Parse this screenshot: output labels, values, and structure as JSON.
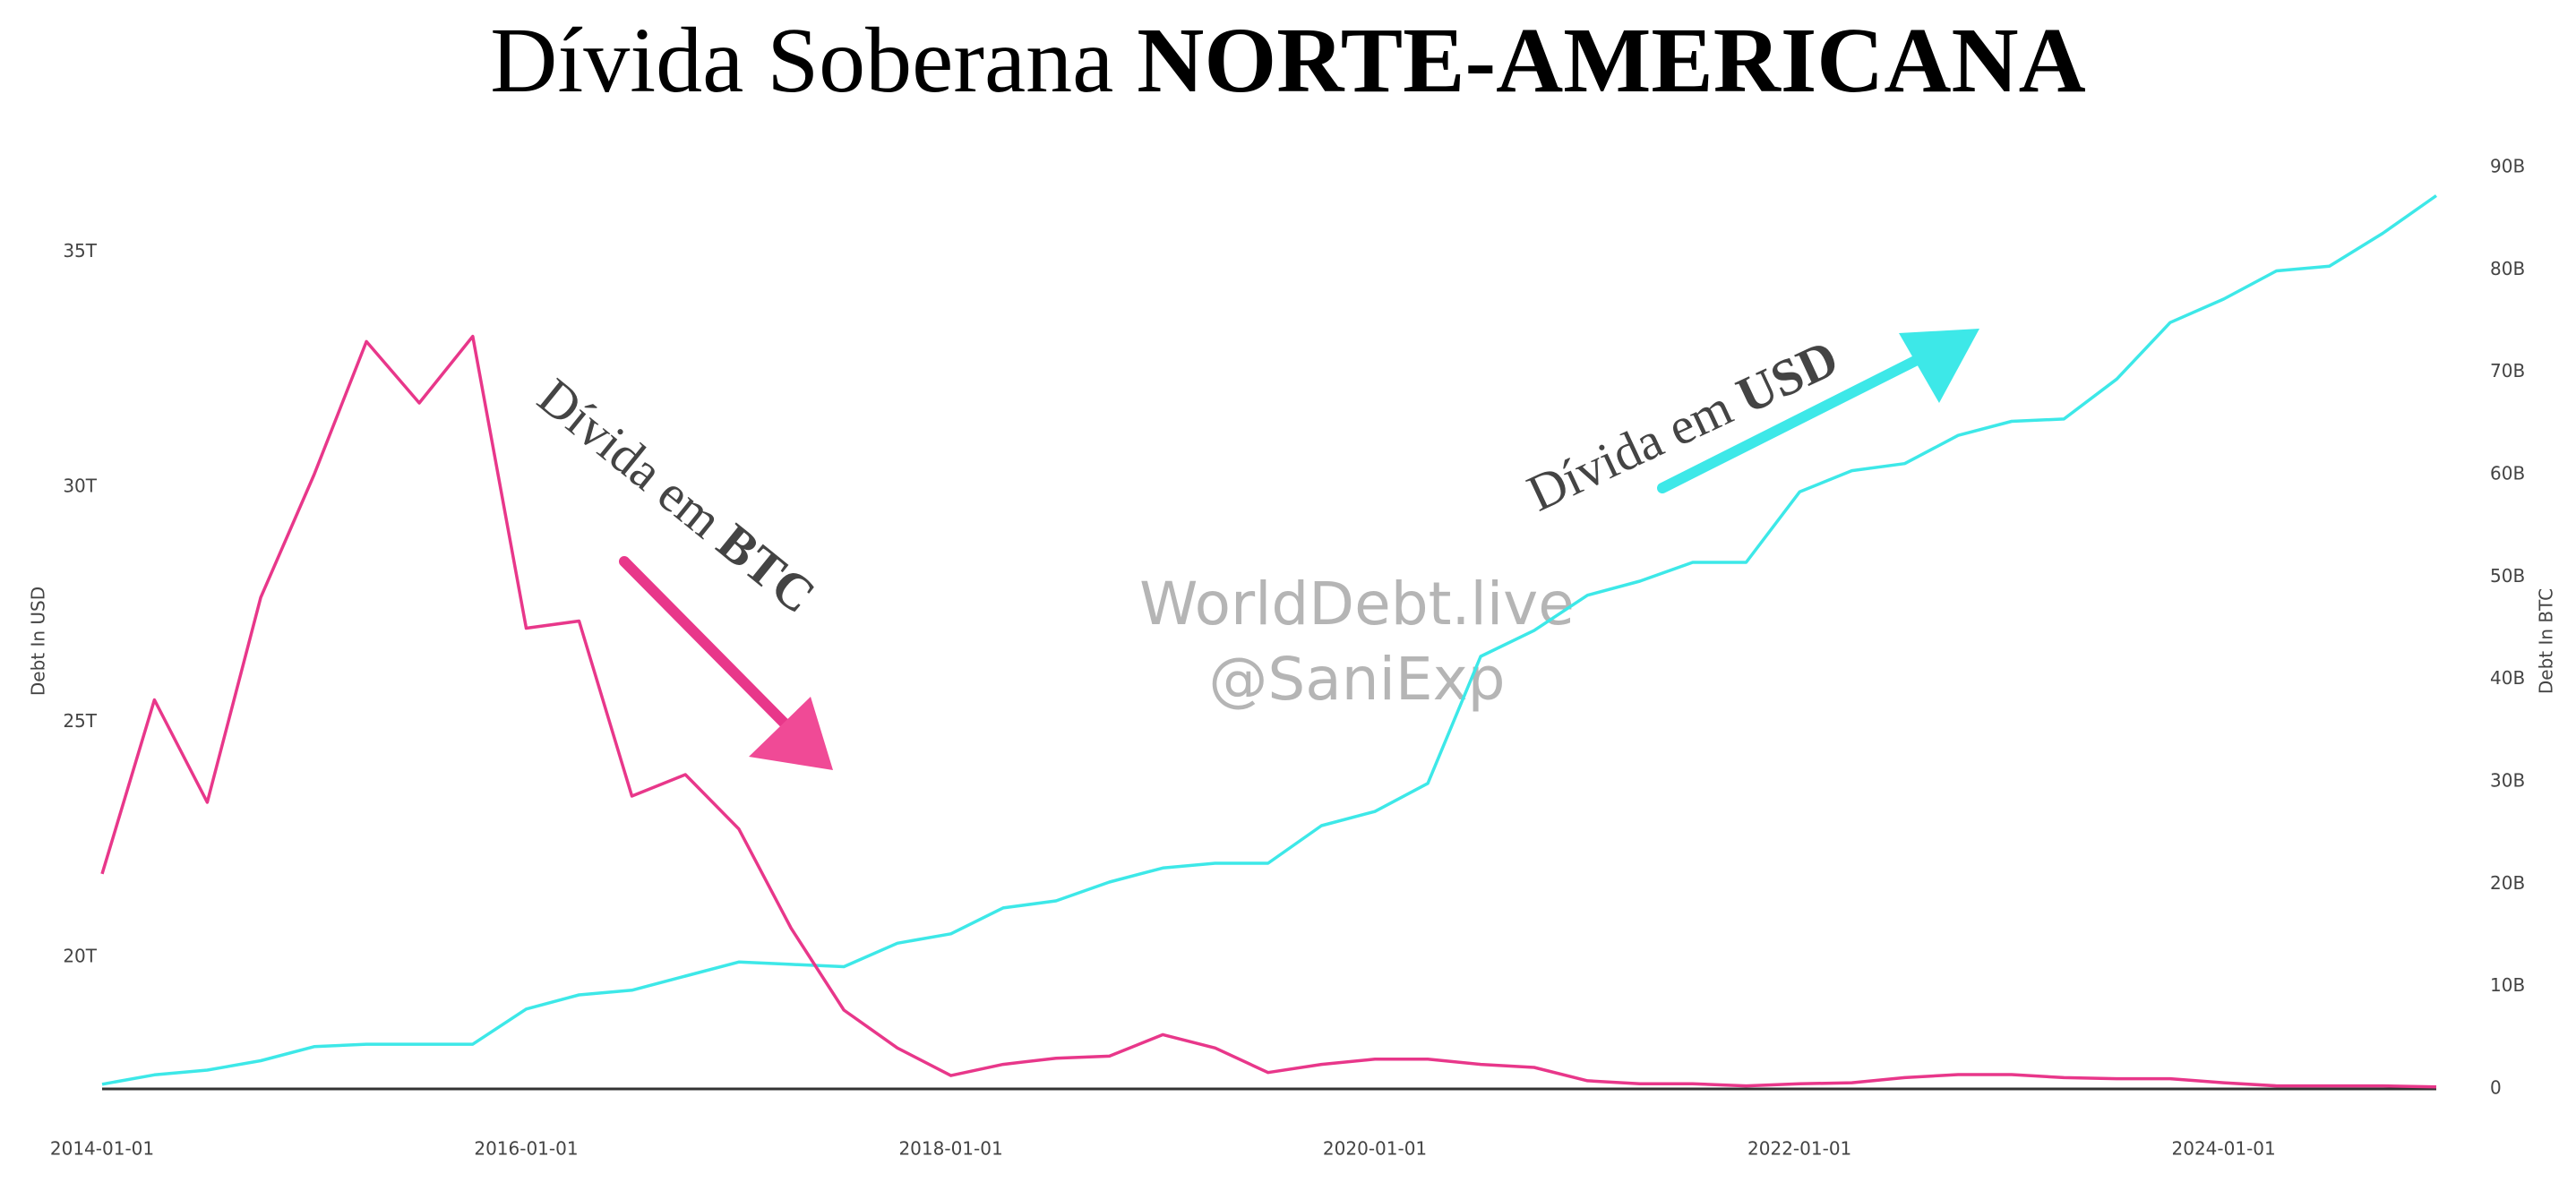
{
  "chart_data": {
    "type": "line",
    "title": "Dívida Soberana",
    "title_emphasis": "NORTE-AMERICANA",
    "ylabel": "Debt In USD",
    "y2label": "Debt In BTC",
    "watermark": [
      "WorldDebt.live",
      "@SaniExp"
    ],
    "annotations": [
      {
        "text": "Dívida em",
        "emphasis": "BTC"
      },
      {
        "text": "Dívida em",
        "emphasis": "USD"
      }
    ],
    "x": [
      "2014-01-01",
      "2014-04-01",
      "2014-07-01",
      "2014-10-01",
      "2015-01-01",
      "2015-04-01",
      "2015-07-01",
      "2015-10-01",
      "2016-01-01",
      "2016-04-01",
      "2016-07-01",
      "2016-10-01",
      "2017-01-01",
      "2017-04-01",
      "2017-07-01",
      "2017-10-01",
      "2018-01-01",
      "2018-04-01",
      "2018-07-01",
      "2018-10-01",
      "2019-01-01",
      "2019-04-01",
      "2019-07-01",
      "2019-10-01",
      "2020-01-01",
      "2020-04-01",
      "2020-07-01",
      "2020-10-01",
      "2021-01-01",
      "2021-04-01",
      "2021-07-01",
      "2021-10-01",
      "2022-01-01",
      "2022-04-01",
      "2022-07-01",
      "2022-10-01",
      "2023-01-01",
      "2023-04-01",
      "2023-07-01",
      "2023-10-01",
      "2024-01-01",
      "2024-04-01",
      "2024-07-01",
      "2024-10-01",
      "2025-01-01"
    ],
    "series": [
      {
        "name": "Debt In USD",
        "color": "#3de8e8",
        "axis": "y",
        "values": [
          17.3,
          17.5,
          17.6,
          17.8,
          18.1,
          18.15,
          18.15,
          18.15,
          18.9,
          19.2,
          19.3,
          19.6,
          19.9,
          19.85,
          19.8,
          20.3,
          20.5,
          21.05,
          21.2,
          21.6,
          21.9,
          22.0,
          22.0,
          22.8,
          23.1,
          23.7,
          26.4,
          26.95,
          27.7,
          28.0,
          28.4,
          28.4,
          29.9,
          30.35,
          30.5,
          31.1,
          31.4,
          31.45,
          32.3,
          33.5,
          34.0,
          34.6,
          34.7,
          35.4,
          36.2
        ]
      },
      {
        "name": "Debt In BTC",
        "color": "#e8378a",
        "axis": "y2",
        "values": [
          21,
          38,
          28,
          48,
          60,
          73,
          67,
          73.5,
          45,
          45.7,
          28.6,
          30.7,
          25.4,
          15.7,
          7.7,
          4.0,
          1.3,
          2.4,
          3.0,
          3.2,
          5.3,
          4.0,
          1.6,
          2.4,
          2.9,
          2.9,
          2.4,
          2.1,
          0.8,
          0.5,
          0.5,
          0.3,
          0.5,
          0.6,
          1.1,
          1.4,
          1.4,
          1.1,
          1.0,
          1.0,
          0.6,
          0.3,
          0.3,
          0.3,
          0.2
        ]
      }
    ],
    "xlim": [
      "2014-01-01",
      "2025-01-01"
    ],
    "xticks": [
      "2014-01-01",
      "2016-01-01",
      "2018-01-01",
      "2020-01-01",
      "2022-01-01",
      "2024-01-01"
    ],
    "ylim": [
      17.2,
      36.8
    ],
    "yticks": [
      {
        "value": 20,
        "label": "20T"
      },
      {
        "value": 25,
        "label": "25T"
      },
      {
        "value": 30,
        "label": "30T"
      },
      {
        "value": 35,
        "label": "35T"
      }
    ],
    "y2lim": [
      0,
      90
    ],
    "y2ticks": [
      0,
      {
        "value": 10,
        "label": "10B"
      },
      {
        "value": 20,
        "label": "20B"
      },
      {
        "value": 30,
        "label": "30B"
      },
      {
        "value": 40,
        "label": "40B"
      },
      {
        "value": 50,
        "label": "50B"
      },
      {
        "value": 60,
        "label": "60B"
      },
      {
        "value": 70,
        "label": "70B"
      },
      {
        "value": 80,
        "label": "80B"
      },
      {
        "value": 90,
        "label": "90B"
      }
    ],
    "grid": false
  }
}
